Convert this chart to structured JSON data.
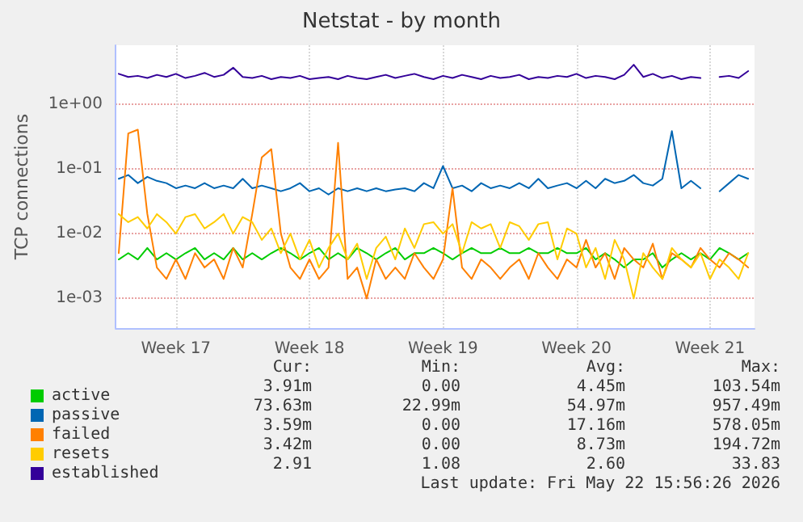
{
  "chart_data": {
    "type": "line",
    "title": "Netstat - by month",
    "ylabel": "TCP connections",
    "log": "y",
    "grid": true,
    "legend": "bottom left",
    "marker": "none",
    "line_style": "solid",
    "x": [
      "2026-04-20T12:00",
      "2026-04-21T00:00",
      "2026-04-21T12:00",
      "2026-04-22T00:00",
      "2026-04-22T12:00",
      "2026-04-23T00:00",
      "2026-04-23T12:00",
      "2026-04-24T00:00",
      "2026-04-24T12:00",
      "2026-04-25T00:00",
      "2026-04-25T12:00",
      "2026-04-26T00:00",
      "2026-04-26T12:00",
      "2026-04-27T00:00",
      "2026-04-27T12:00",
      "2026-04-28T00:00",
      "2026-04-28T12:00",
      "2026-04-29T00:00",
      "2026-04-29T12:00",
      "2026-04-30T00:00",
      "2026-04-30T12:00",
      "2026-05-01T00:00",
      "2026-05-01T12:00",
      "2026-05-02T00:00",
      "2026-05-02T12:00",
      "2026-05-03T00:00",
      "2026-05-03T12:00",
      "2026-05-04T00:00",
      "2026-05-04T12:00",
      "2026-05-05T00:00",
      "2026-05-05T12:00",
      "2026-05-06T00:00",
      "2026-05-06T12:00",
      "2026-05-07T00:00",
      "2026-05-07T12:00",
      "2026-05-08T00:00",
      "2026-05-08T12:00",
      "2026-05-09T00:00",
      "2026-05-09T12:00",
      "2026-05-10T00:00",
      "2026-05-10T12:00",
      "2026-05-11T00:00",
      "2026-05-11T12:00",
      "2026-05-12T00:00",
      "2026-05-12T12:00",
      "2026-05-13T00:00",
      "2026-05-13T12:00",
      "2026-05-14T00:00",
      "2026-05-14T12:00",
      "2026-05-15T00:00",
      "2026-05-15T12:00",
      "2026-05-16T00:00",
      "2026-05-16T12:00",
      "2026-05-17T00:00",
      "2026-05-17T12:00",
      "2026-05-18T00:00",
      "2026-05-18T12:00",
      "2026-05-19T00:00",
      "2026-05-19T12:00",
      "2026-05-20T00:00",
      "2026-05-20T12:00",
      "2026-05-21T00:00",
      "2026-05-21T12:00",
      "2026-05-22T00:00",
      "2026-05-22T12:00",
      "2026-05-23T00:00",
      "2026-05-23T12:00"
    ],
    "xlim": [
      "2026-04-20T08:00",
      "2026-05-23T20:00"
    ],
    "xticks": [
      {
        "value": "2026-04-23T12:00",
        "label": "Week 17"
      },
      {
        "value": "2026-04-30T12:00",
        "label": "Week 18"
      },
      {
        "value": "2026-05-07T12:00",
        "label": "Week 19"
      },
      {
        "value": "2026-05-14T12:00",
        "label": "Week 20"
      },
      {
        "value": "2026-05-21T12:00",
        "label": "Week 21"
      }
    ],
    "ylim": [
      0.00035,
      8
    ],
    "yticks": [
      {
        "value": 0.001,
        "label": "1e-03"
      },
      {
        "value": 0.01,
        "label": "1e-02"
      },
      {
        "value": 0.1,
        "label": "1e-01"
      },
      {
        "value": 1,
        "label": "1e+00"
      }
    ],
    "series": [
      {
        "name": "active",
        "color": "#00cc00",
        "values": [
          0.004,
          0.005,
          0.004,
          0.006,
          0.004,
          0.005,
          0.004,
          0.005,
          0.006,
          0.004,
          0.005,
          0.004,
          0.006,
          0.004,
          0.005,
          0.004,
          0.005,
          0.006,
          0.005,
          0.004,
          0.005,
          0.006,
          0.004,
          0.005,
          0.004,
          0.006,
          0.005,
          0.004,
          0.005,
          0.006,
          0.004,
          0.005,
          0.005,
          0.006,
          0.005,
          0.004,
          0.005,
          0.006,
          0.005,
          0.005,
          0.006,
          0.005,
          0.005,
          0.006,
          0.005,
          0.005,
          0.006,
          0.005,
          0.005,
          0.006,
          0.004,
          0.005,
          0.004,
          0.003,
          0.004,
          0.004,
          0.005,
          0.003,
          0.004,
          0.005,
          0.004,
          0.005,
          0.004,
          0.006,
          0.005,
          0.004,
          0.005
        ]
      },
      {
        "name": "passive",
        "color": "#0066b3",
        "values": [
          0.07,
          0.08,
          0.06,
          0.075,
          0.065,
          0.06,
          0.05,
          0.055,
          0.05,
          0.06,
          0.05,
          0.055,
          0.05,
          0.07,
          0.05,
          0.055,
          0.05,
          0.045,
          0.05,
          0.06,
          0.045,
          0.05,
          0.04,
          0.05,
          0.045,
          0.05,
          0.045,
          0.05,
          0.045,
          0.048,
          0.05,
          0.045,
          0.06,
          0.05,
          0.11,
          0.05,
          0.055,
          0.045,
          0.06,
          0.05,
          0.055,
          0.05,
          0.06,
          0.05,
          0.07,
          0.05,
          0.055,
          0.06,
          0.05,
          0.065,
          0.05,
          0.07,
          0.06,
          0.065,
          0.08,
          0.06,
          0.055,
          0.07,
          0.38,
          0.05,
          0.065,
          0.05,
          null,
          0.045,
          0.06,
          0.08,
          0.07
        ]
      },
      {
        "name": "failed",
        "color": "#ff8000",
        "values": [
          0.005,
          0.35,
          0.4,
          0.02,
          0.003,
          0.002,
          0.004,
          0.002,
          0.005,
          0.003,
          0.004,
          0.002,
          0.006,
          0.003,
          0.02,
          0.15,
          0.2,
          0.01,
          0.003,
          0.002,
          0.004,
          0.002,
          0.003,
          0.25,
          0.002,
          0.003,
          0.001,
          0.004,
          0.002,
          0.003,
          0.002,
          0.005,
          0.003,
          0.002,
          0.004,
          0.05,
          0.003,
          0.002,
          0.004,
          0.003,
          0.002,
          0.003,
          0.004,
          0.002,
          0.005,
          0.003,
          0.002,
          0.004,
          0.003,
          0.008,
          0.003,
          0.005,
          0.002,
          0.006,
          0.004,
          0.003,
          0.007,
          0.002,
          0.005,
          0.004,
          0.003,
          0.006,
          0.004,
          0.003,
          0.005,
          0.004,
          0.003
        ]
      },
      {
        "name": "resets",
        "color": "#ffcc00",
        "values": [
          0.02,
          0.015,
          0.018,
          0.012,
          0.02,
          0.015,
          0.01,
          0.018,
          0.02,
          0.012,
          0.015,
          0.02,
          0.01,
          0.018,
          0.015,
          0.008,
          0.012,
          0.005,
          0.01,
          0.004,
          0.008,
          0.003,
          0.006,
          0.01,
          0.004,
          0.007,
          0.002,
          0.006,
          0.009,
          0.004,
          0.012,
          0.006,
          0.014,
          0.015,
          0.01,
          0.014,
          0.005,
          0.015,
          0.012,
          0.014,
          0.006,
          0.015,
          0.013,
          0.008,
          0.014,
          0.015,
          0.004,
          0.012,
          0.01,
          0.003,
          0.006,
          0.002,
          0.008,
          0.004,
          0.001,
          0.005,
          0.003,
          0.002,
          0.006,
          0.004,
          0.003,
          0.005,
          0.002,
          0.004,
          0.003,
          0.002,
          0.005
        ]
      },
      {
        "name": "established",
        "color": "#330099",
        "values": [
          2.9,
          2.6,
          2.7,
          2.5,
          2.8,
          2.6,
          2.9,
          2.5,
          2.7,
          3.0,
          2.6,
          2.8,
          3.6,
          2.6,
          2.5,
          2.7,
          2.4,
          2.6,
          2.5,
          2.7,
          2.4,
          2.5,
          2.6,
          2.4,
          2.7,
          2.5,
          2.4,
          2.6,
          2.8,
          2.5,
          2.7,
          2.9,
          2.6,
          2.4,
          2.7,
          2.5,
          2.8,
          2.6,
          2.4,
          2.7,
          2.5,
          2.6,
          2.8,
          2.4,
          2.6,
          2.5,
          2.7,
          2.6,
          2.9,
          2.5,
          2.7,
          2.6,
          2.4,
          2.8,
          4.0,
          2.6,
          2.9,
          2.5,
          2.7,
          2.4,
          2.6,
          2.5,
          null,
          2.6,
          2.7,
          2.5,
          3.2
        ]
      }
    ],
    "annotations": [
      "Cur:",
      "Min:",
      "Avg:",
      "Max:",
      "3.91m",
      "0.00",
      "4.45m",
      "103.54m",
      "73.63m",
      "22.99m",
      "54.97m",
      "957.49m",
      "3.59m",
      "0.00",
      "17.16m",
      "578.05m",
      "3.42m",
      "0.00",
      "8.73m",
      "194.72m",
      "2.91",
      "1.08",
      "2.60",
      "33.83",
      "Last update: Fri May 22 15:56:26 2026"
    ]
  }
}
